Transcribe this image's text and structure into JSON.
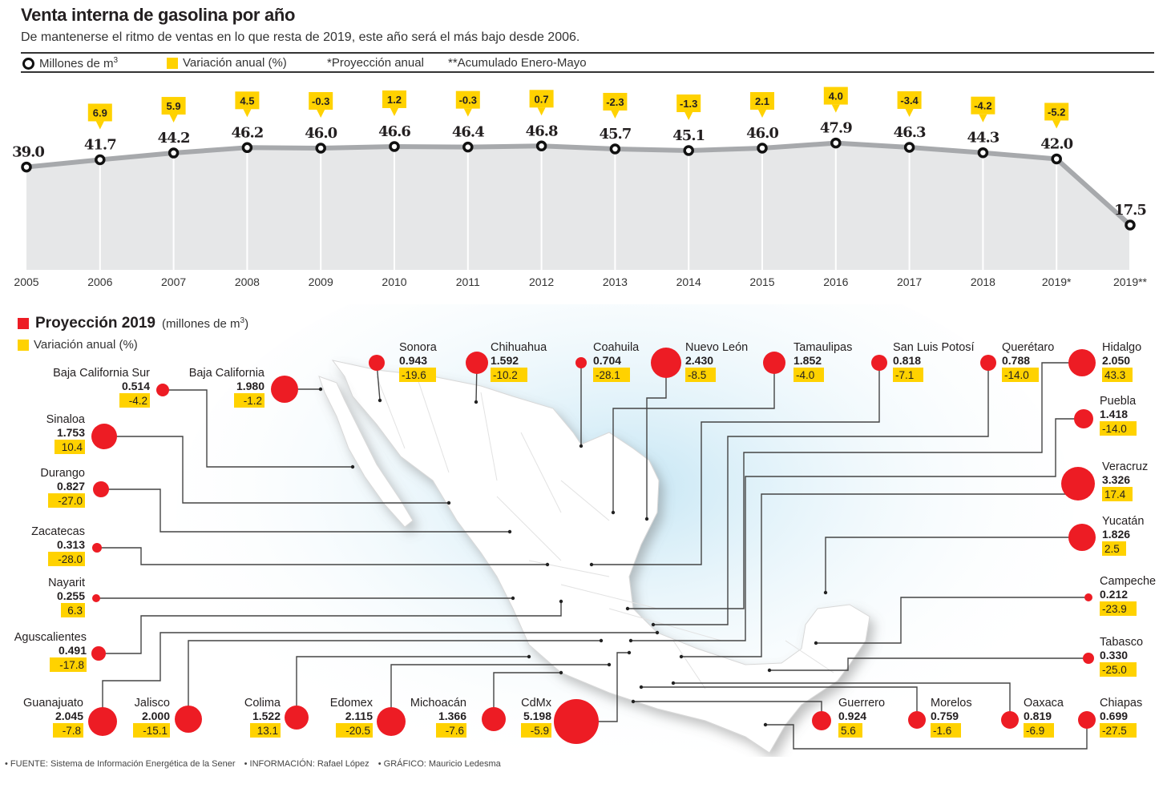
{
  "header": {
    "title": "Venta interna de gasolina por año",
    "subtitle": "De mantenerse el ritmo de ventas en lo que resta de 2019, este año será el más bajo desde 2006.",
    "legend": {
      "millones": "Millones de m",
      "millones_sup": "3",
      "variacion": "Variación anual (%)",
      "proyeccion": "*Proyección anual",
      "acumulado": "**Acumulado Enero-Mayo"
    }
  },
  "chart_data": [
    {
      "type": "area",
      "title": "Venta interna de gasolina por año",
      "ylabel": "Millones de m3",
      "categories": [
        "2005",
        "2006",
        "2007",
        "2008",
        "2009",
        "2010",
        "2011",
        "2012",
        "2013",
        "2014",
        "2015",
        "2016",
        "2017",
        "2018",
        "2019*",
        "2019**"
      ],
      "series": [
        {
          "name": "Millones de m3",
          "values": [
            39.0,
            41.7,
            44.2,
            46.2,
            46.0,
            46.6,
            46.4,
            46.8,
            45.7,
            45.1,
            46.0,
            47.9,
            46.3,
            44.3,
            42.0,
            17.5
          ]
        },
        {
          "name": "Variación anual (%)",
          "values": [
            null,
            6.9,
            5.9,
            4.5,
            -0.3,
            1.2,
            -0.3,
            0.7,
            -2.3,
            -1.3,
            2.1,
            4.0,
            -3.4,
            -4.2,
            -5.2,
            null
          ]
        }
      ],
      "value_labels": [
        "39.0",
        "41.7",
        "44.2",
        "46.2",
        "46.0",
        "46.6",
        "46.4",
        "46.8",
        "45.7",
        "45.1",
        "46.0",
        "47.9",
        "46.3",
        "44.3",
        "42.0",
        "17.5"
      ],
      "variation_labels": [
        null,
        "6.9",
        "5.9",
        "4.5",
        "-0.3",
        "1.2",
        "-0.3",
        "0.7",
        "-2.3",
        "-1.3",
        "2.1",
        "4.0",
        "-3.4",
        "-4.2",
        "-5.2",
        null
      ],
      "ylim": [
        0,
        50
      ],
      "grid": false,
      "colors": {
        "line": "#a7a9ac",
        "area": "#e6e7e8",
        "marker": "#111111",
        "badge": "#ffd200"
      }
    },
    {
      "type": "scatter",
      "title": "Proyección 2019 (millones de m3)",
      "subtitle": "Variación anual (%)",
      "states": [
        {
          "name": "Baja California Sur",
          "value": 0.514,
          "value_label": "0.514",
          "change": "-4.2"
        },
        {
          "name": "Baja California",
          "value": 1.98,
          "value_label": "1.980",
          "change": "-1.2"
        },
        {
          "name": "Sonora",
          "value": 0.943,
          "value_label": "0.943",
          "change": "-19.6"
        },
        {
          "name": "Chihuahua",
          "value": 1.592,
          "value_label": "1.592",
          "change": "-10.2"
        },
        {
          "name": "Coahuila",
          "value": 0.704,
          "value_label": "0.704",
          "change": "-28.1"
        },
        {
          "name": "Nuevo León",
          "value": 2.43,
          "value_label": "2.430",
          "change": "-8.5"
        },
        {
          "name": "Tamaulipas",
          "value": 1.852,
          "value_label": "1.852",
          "change": "-4.0"
        },
        {
          "name": "San Luis Potosí",
          "value": 0.818,
          "value_label": "0.818",
          "change": "-7.1"
        },
        {
          "name": "Querétaro",
          "value": 0.788,
          "value_label": "0.788",
          "change": "-14.0"
        },
        {
          "name": "Hidalgo",
          "value": 2.05,
          "value_label": "2.050",
          "change": "43.3"
        },
        {
          "name": "Sinaloa",
          "value": 1.753,
          "value_label": "1.753",
          "change": "10.4"
        },
        {
          "name": "Durango",
          "value": 0.827,
          "value_label": "0.827",
          "change": "-27.0"
        },
        {
          "name": "Zacatecas",
          "value": 0.313,
          "value_label": "0.313",
          "change": "-28.0"
        },
        {
          "name": "Nayarit",
          "value": 0.255,
          "value_label": "0.255",
          "change": "6.3"
        },
        {
          "name": "Aguscalientes",
          "value": 0.491,
          "value_label": "0.491",
          "change": "-17.8"
        },
        {
          "name": "Puebla",
          "value": 1.418,
          "value_label": "1.418",
          "change": "-14.0"
        },
        {
          "name": "Veracruz",
          "value": 3.326,
          "value_label": "3.326",
          "change": "17.4"
        },
        {
          "name": "Yucatán",
          "value": 1.826,
          "value_label": "1.826",
          "change": "2.5"
        },
        {
          "name": "Campeche",
          "value": 0.212,
          "value_label": "0.212",
          "change": "-23.9"
        },
        {
          "name": "Tabasco",
          "value": 0.33,
          "value_label": "0.330",
          "change": "-25.0"
        },
        {
          "name": "Guanajuato",
          "value": 2.045,
          "value_label": "2.045",
          "change": "-7.8"
        },
        {
          "name": "Jalisco",
          "value": 2.0,
          "value_label": "2.000",
          "change": "-15.1"
        },
        {
          "name": "Colima",
          "value": 1.522,
          "value_label": "1.522",
          "change": "13.1"
        },
        {
          "name": "Edomex",
          "value": 2.115,
          "value_label": "2.115",
          "change": "-20.5"
        },
        {
          "name": "Michoacán",
          "value": 1.366,
          "value_label": "1.366",
          "change": "-7.6"
        },
        {
          "name": "CdMx",
          "value": 5.198,
          "value_label": "5.198",
          "change": "-5.9"
        },
        {
          "name": "Guerrero",
          "value": 0.924,
          "value_label": "0.924",
          "change": "5.6"
        },
        {
          "name": "Morelos",
          "value": 0.759,
          "value_label": "0.759",
          "change": "-1.6"
        },
        {
          "name": "Oaxaca",
          "value": 0.819,
          "value_label": "0.819",
          "change": "-6.9"
        },
        {
          "name": "Chiapas",
          "value": 0.699,
          "value_label": "0.699",
          "change": "-27.5"
        }
      ],
      "colors": {
        "bubble": "#ed1c24",
        "badge": "#ffd200"
      }
    }
  ],
  "map_section": {
    "title": "Proyección 2019",
    "units": "(millones de m",
    "units_sup": "3",
    "units_close": ")",
    "variation_legend": "Variación anual (%)"
  },
  "footer": {
    "fuente": "• FUENTE: Sistema de Información Energética de la Sener",
    "informacion": "• INFORMACIÓN: Rafael López",
    "grafico": "• GRÁFICO: Mauricio Ledesma"
  }
}
